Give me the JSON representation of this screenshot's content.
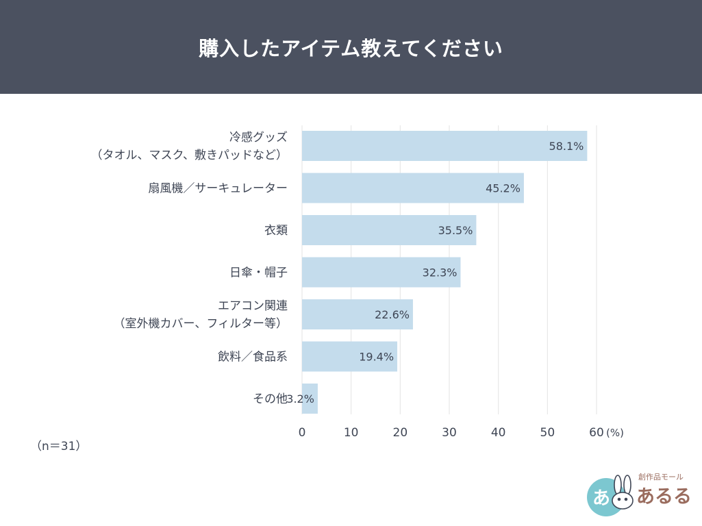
{
  "header": {
    "title": "購入したアイテム教えてください"
  },
  "chart_data": {
    "type": "bar",
    "orientation": "horizontal",
    "categories": [
      [
        "冷感グッズ",
        "（タオル、マスク、敷きパッドなど）"
      ],
      [
        "扇風機／サーキュレーター"
      ],
      [
        "衣類"
      ],
      [
        "日傘・帽子"
      ],
      [
        "エアコン関連",
        "（室外機カバー、フィルター等）"
      ],
      [
        "飲料／食品系"
      ],
      [
        "その他"
      ]
    ],
    "values": [
      58.1,
      45.2,
      35.5,
      32.3,
      22.6,
      19.4,
      3.2
    ],
    "value_labels": [
      "58.1%",
      "45.2%",
      "35.5%",
      "32.3%",
      "22.6%",
      "19.4%",
      "3.2%"
    ],
    "x_ticks": [
      0,
      10,
      20,
      30,
      40,
      50,
      60
    ],
    "x_unit": "(%)",
    "xlim": [
      0,
      60
    ],
    "grid": true,
    "bar_color": "#c4dcec",
    "grid_color": "#e3e3e3"
  },
  "sample_size": "（n＝31）",
  "logo": {
    "text": "あるる",
    "tagline": "創作品モール"
  }
}
